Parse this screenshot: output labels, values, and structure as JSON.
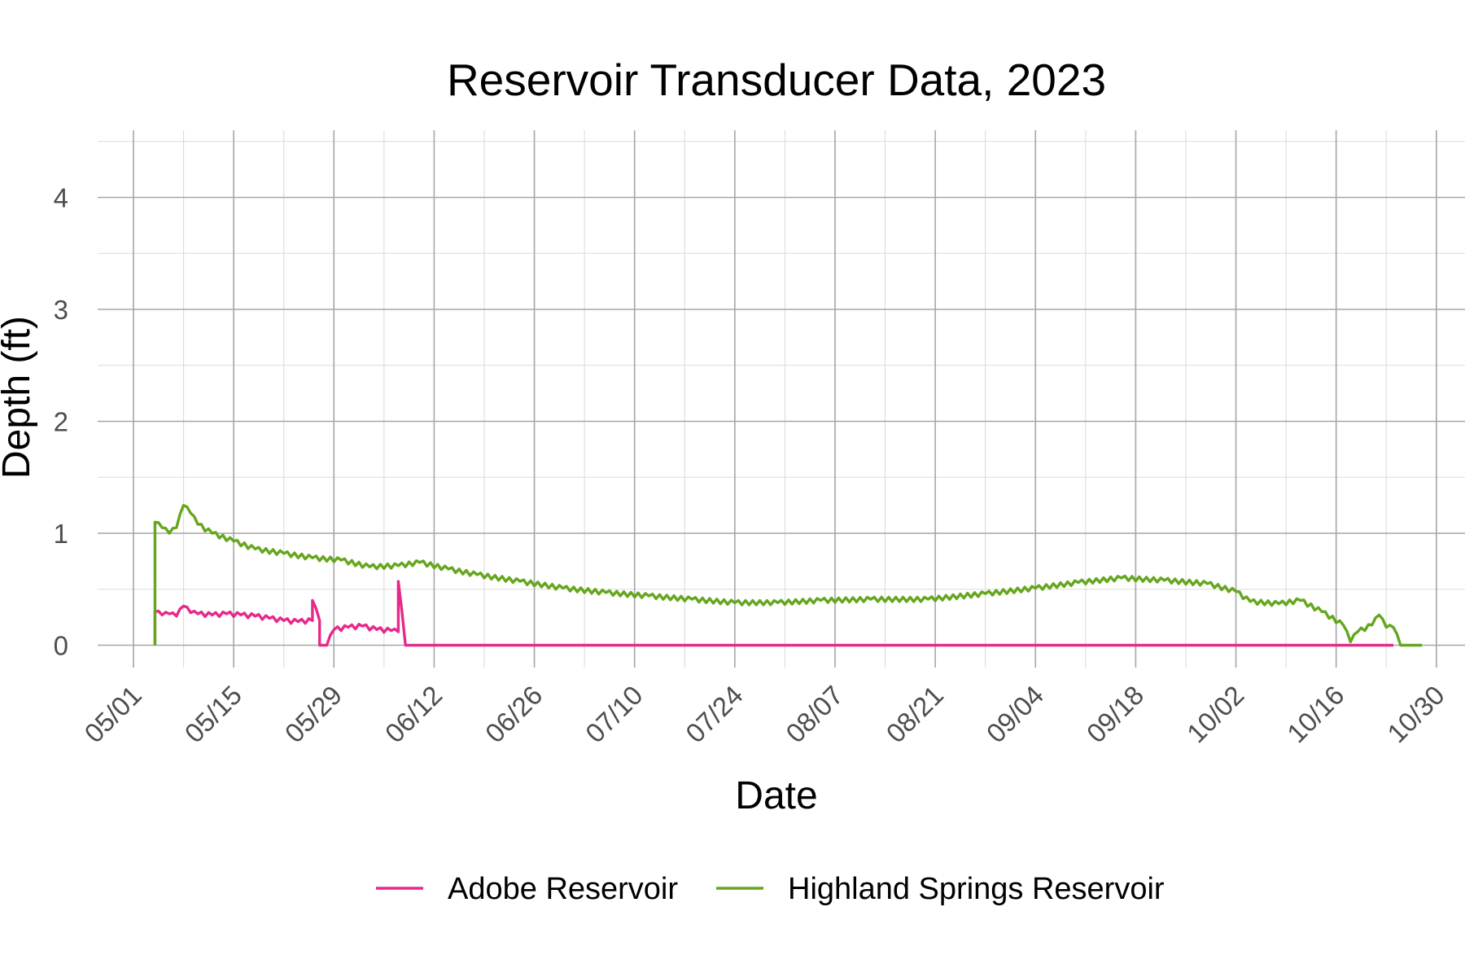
{
  "chart_data": {
    "type": "line",
    "title": "Reservoir Transducer Data, 2023",
    "xlabel": "Date",
    "ylabel": "Depth (ft)",
    "x_axis": {
      "type": "date",
      "range": [
        "2023-04-26",
        "2023-11-03"
      ],
      "tick_labels": [
        "05/01",
        "05/15",
        "05/29",
        "06/12",
        "06/26",
        "07/10",
        "07/24",
        "08/07",
        "08/21",
        "09/04",
        "09/18",
        "10/02",
        "10/16",
        "10/30"
      ],
      "tick_dates": [
        "2023-05-01",
        "2023-05-15",
        "2023-05-29",
        "2023-06-12",
        "2023-06-26",
        "2023-07-10",
        "2023-07-24",
        "2023-08-07",
        "2023-08-21",
        "2023-09-04",
        "2023-09-18",
        "2023-10-02",
        "2023-10-16",
        "2023-10-30"
      ]
    },
    "y_axis": {
      "range": [
        -0.2,
        4.6
      ],
      "tick_labels": [
        "0",
        "1",
        "2",
        "3",
        "4"
      ],
      "tick_values": [
        0,
        1,
        2,
        3,
        4
      ]
    },
    "grid": true,
    "legend_position": "bottom",
    "series": [
      {
        "name": "Adobe Reservoir",
        "color": "#e7298a",
        "points": [
          [
            "2023-05-04",
            0.0
          ],
          [
            "2023-05-04",
            0.3
          ],
          [
            "2023-05-05",
            0.27
          ],
          [
            "2023-05-06",
            0.28
          ],
          [
            "2023-05-07",
            0.26
          ],
          [
            "2023-05-08",
            0.35
          ],
          [
            "2023-05-09",
            0.29
          ],
          [
            "2023-05-10",
            0.28
          ],
          [
            "2023-05-12",
            0.27
          ],
          [
            "2023-05-14",
            0.28
          ],
          [
            "2023-05-16",
            0.27
          ],
          [
            "2023-05-18",
            0.26
          ],
          [
            "2023-05-20",
            0.24
          ],
          [
            "2023-05-22",
            0.22
          ],
          [
            "2023-05-24",
            0.21
          ],
          [
            "2023-05-26",
            0.22
          ],
          [
            "2023-05-26",
            0.4
          ],
          [
            "2023-05-27",
            0.22
          ],
          [
            "2023-05-27",
            0.0
          ],
          [
            "2023-05-28",
            0.0
          ],
          [
            "2023-05-29",
            0.14
          ],
          [
            "2023-05-31",
            0.16
          ],
          [
            "2023-06-02",
            0.17
          ],
          [
            "2023-06-04",
            0.14
          ],
          [
            "2023-06-06",
            0.13
          ],
          [
            "2023-06-07",
            0.12
          ],
          [
            "2023-06-07",
            0.57
          ],
          [
            "2023-06-08",
            0.0
          ],
          [
            "2023-10-24",
            0.0
          ]
        ]
      },
      {
        "name": "Highland Springs Reservoir",
        "color": "#66a61e",
        "points": [
          [
            "2023-05-04",
            0.0
          ],
          [
            "2023-05-04",
            1.1
          ],
          [
            "2023-05-05",
            1.05
          ],
          [
            "2023-05-06",
            1.0
          ],
          [
            "2023-05-07",
            1.05
          ],
          [
            "2023-05-08",
            1.25
          ],
          [
            "2023-05-09",
            1.18
          ],
          [
            "2023-05-10",
            1.08
          ],
          [
            "2023-05-12",
            1.0
          ],
          [
            "2023-05-15",
            0.93
          ],
          [
            "2023-05-18",
            0.86
          ],
          [
            "2023-05-22",
            0.82
          ],
          [
            "2023-05-26",
            0.78
          ],
          [
            "2023-05-30",
            0.76
          ],
          [
            "2023-06-03",
            0.7
          ],
          [
            "2023-06-07",
            0.71
          ],
          [
            "2023-06-10",
            0.74
          ],
          [
            "2023-06-14",
            0.68
          ],
          [
            "2023-06-18",
            0.63
          ],
          [
            "2023-06-24",
            0.57
          ],
          [
            "2023-06-30",
            0.51
          ],
          [
            "2023-07-06",
            0.47
          ],
          [
            "2023-07-12",
            0.44
          ],
          [
            "2023-07-18",
            0.41
          ],
          [
            "2023-07-24",
            0.38
          ],
          [
            "2023-07-30",
            0.38
          ],
          [
            "2023-08-05",
            0.4
          ],
          [
            "2023-08-12",
            0.41
          ],
          [
            "2023-08-20",
            0.41
          ],
          [
            "2023-08-28",
            0.46
          ],
          [
            "2023-09-04",
            0.51
          ],
          [
            "2023-09-10",
            0.56
          ],
          [
            "2023-09-16",
            0.6
          ],
          [
            "2023-09-22",
            0.58
          ],
          [
            "2023-09-28",
            0.55
          ],
          [
            "2023-10-02",
            0.48
          ],
          [
            "2023-10-04",
            0.39
          ],
          [
            "2023-10-08",
            0.37
          ],
          [
            "2023-10-11",
            0.4
          ],
          [
            "2023-10-14",
            0.3
          ],
          [
            "2023-10-17",
            0.18
          ],
          [
            "2023-10-18",
            0.03
          ],
          [
            "2023-10-19",
            0.12
          ],
          [
            "2023-10-21",
            0.18
          ],
          [
            "2023-10-22",
            0.27
          ],
          [
            "2023-10-23",
            0.16
          ],
          [
            "2023-10-24",
            0.16
          ],
          [
            "2023-10-25",
            0.0
          ],
          [
            "2023-10-28",
            0.0
          ]
        ]
      }
    ]
  }
}
